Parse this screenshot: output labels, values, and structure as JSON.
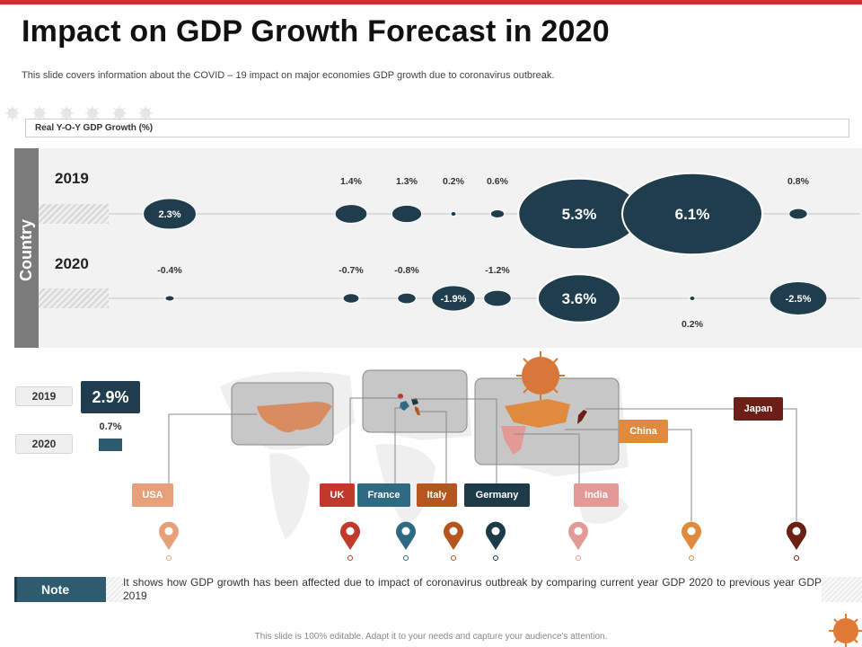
{
  "header": {
    "title": "Impact on GDP Growth Forecast in 2020",
    "subtitle": "This slide covers information about the COVID – 19 impact on major economies GDP growth due to coronavirus outbreak."
  },
  "chart_data": {
    "type": "bubble",
    "title": "Real Y-O-Y GDP Growth (%)",
    "axis_label": "Country",
    "categories": [
      "USA",
      "UK",
      "France",
      "Italy",
      "Germany",
      "India",
      "China",
      "Japan"
    ],
    "series": [
      {
        "name": "2019",
        "values": [
          2.3,
          1.4,
          1.3,
          0.2,
          0.6,
          5.3,
          6.1,
          0.8
        ],
        "labels": [
          "2.3%",
          "1.4%",
          "1.3%",
          "0.2%",
          "0.6%",
          "5.3%",
          "6.1%",
          "0.8%"
        ]
      },
      {
        "name": "2020",
        "values": [
          -0.4,
          -0.7,
          -0.8,
          -1.9,
          -1.2,
          3.6,
          0.2,
          -2.5
        ],
        "labels": [
          "-0.4%",
          "-0.7%",
          "-0.8%",
          "-1.9%",
          "-1.2%",
          "3.6%",
          "0.2%",
          "-2.5%"
        ]
      }
    ],
    "average": {
      "2019": "2.9%",
      "2020": "0.7%"
    }
  },
  "legend": {
    "year_2019": "2019",
    "year_2020": "2020"
  },
  "countries": [
    {
      "name": "USA",
      "color": "#e8a07a"
    },
    {
      "name": "UK",
      "color": "#c0392b"
    },
    {
      "name": "France",
      "color": "#2e6a84"
    },
    {
      "name": "Italy",
      "color": "#b5561f"
    },
    {
      "name": "Germany",
      "color": "#1d3a48"
    },
    {
      "name": "India",
      "color": "#e39a96"
    },
    {
      "name": "China",
      "color": "#e08a3e"
    },
    {
      "name": "Japan",
      "color": "#6b1f16"
    }
  ],
  "note": {
    "label": "Note",
    "text": "It shows how GDP growth has been affected due to impact of coronavirus outbreak by comparing current year GDP 2020 to previous year GDP 2019"
  },
  "footer": "This slide is 100% editable. Adapt it to your needs and capture your audience's attention.",
  "colors": {
    "accent_red": "#d0312d",
    "bubble_dark": "#1f3d4c",
    "bubble_border": "#ffffff"
  }
}
